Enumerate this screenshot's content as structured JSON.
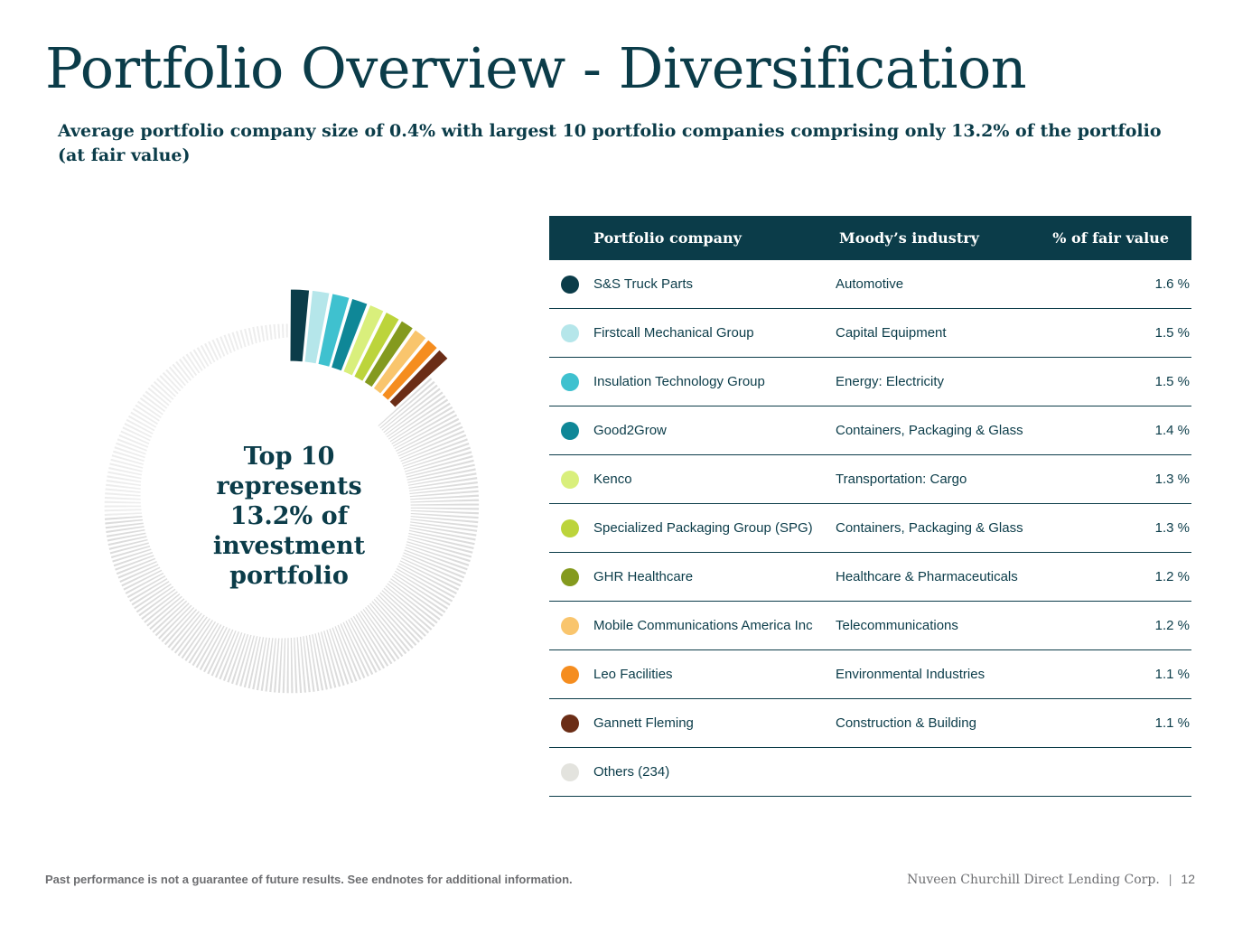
{
  "title": "Portfolio Overview - Diversification",
  "subtitle": "Average portfolio company size of 0.4% with largest 10 portfolio companies comprising only 13.2% of the portfolio (at fair value)",
  "center_text": "Top 10 represents 13.2% of investment portfolio",
  "table": {
    "headers": {
      "company": "Portfolio company",
      "industry": "Moody’s industry",
      "pct": "% of fair value"
    },
    "rows": [
      {
        "company": "S&S Truck Parts",
        "industry": "Automotive",
        "pct": "1.6 %",
        "color": "#0b3c49"
      },
      {
        "company": "Firstcall Mechanical Group",
        "industry": "Capital Equipment",
        "pct": "1.5 %",
        "color": "#b5e6ea"
      },
      {
        "company": "Insulation Technology Group",
        "industry": "Energy: Electricity",
        "pct": "1.5 %",
        "color": "#3fc1cf"
      },
      {
        "company": "Good2Grow",
        "industry": "Containers, Packaging & Glass",
        "pct": "1.4 %",
        "color": "#0f8797"
      },
      {
        "company": "Kenco",
        "industry": "Transportation: Cargo",
        "pct": "1.3 %",
        "color": "#d9ef7c"
      },
      {
        "company": "Specialized Packaging Group (SPG)",
        "industry": "Containers, Packaging & Glass",
        "pct": "1.3 %",
        "color": "#bcd43b"
      },
      {
        "company": "GHR Healthcare",
        "industry": "Healthcare & Pharmaceuticals",
        "pct": "1.2 %",
        "color": "#849a1e"
      },
      {
        "company": "Mobile Communications America Inc",
        "industry": "Telecommunications",
        "pct": "1.2 %",
        "color": "#f9c56d"
      },
      {
        "company": "Leo Facilities",
        "industry": "Environmental Industries",
        "pct": "1.1 %",
        "color": "#f58d1f"
      },
      {
        "company": "Gannett Fleming",
        "industry": "Construction & Building",
        "pct": "1.1 %",
        "color": "#6b2d16"
      },
      {
        "company": "Others (234)",
        "industry": "",
        "pct": "",
        "color": "#e3e3de"
      }
    ]
  },
  "chart_data": {
    "type": "pie",
    "variant": "donut",
    "labels": [
      "S&S Truck Parts",
      "Firstcall Mechanical Group",
      "Insulation Technology Group",
      "Good2Grow",
      "Kenco",
      "Specialized Packaging Group (SPG)",
      "GHR Healthcare",
      "Mobile Communications America Inc",
      "Leo Facilities",
      "Gannett Fleming",
      "Others (234)"
    ],
    "values": [
      1.6,
      1.5,
      1.5,
      1.4,
      1.3,
      1.3,
      1.2,
      1.2,
      1.1,
      1.1,
      86.8
    ],
    "colors": [
      "#0b3c49",
      "#b5e6ea",
      "#3fc1cf",
      "#0f8797",
      "#d9ef7c",
      "#bcd43b",
      "#849a1e",
      "#f9c56d",
      "#f58d1f",
      "#6b2d16",
      "#dcdcdc"
    ],
    "others_count": 234,
    "others_color_near": "#dcdcdc",
    "others_color_far": "#ededed"
  },
  "footer": {
    "note": "Past performance is not a guarantee of future results. See endnotes for additional information.",
    "firm": "Nuveen Churchill Direct Lending Corp.",
    "separator": "|",
    "page": "12"
  }
}
